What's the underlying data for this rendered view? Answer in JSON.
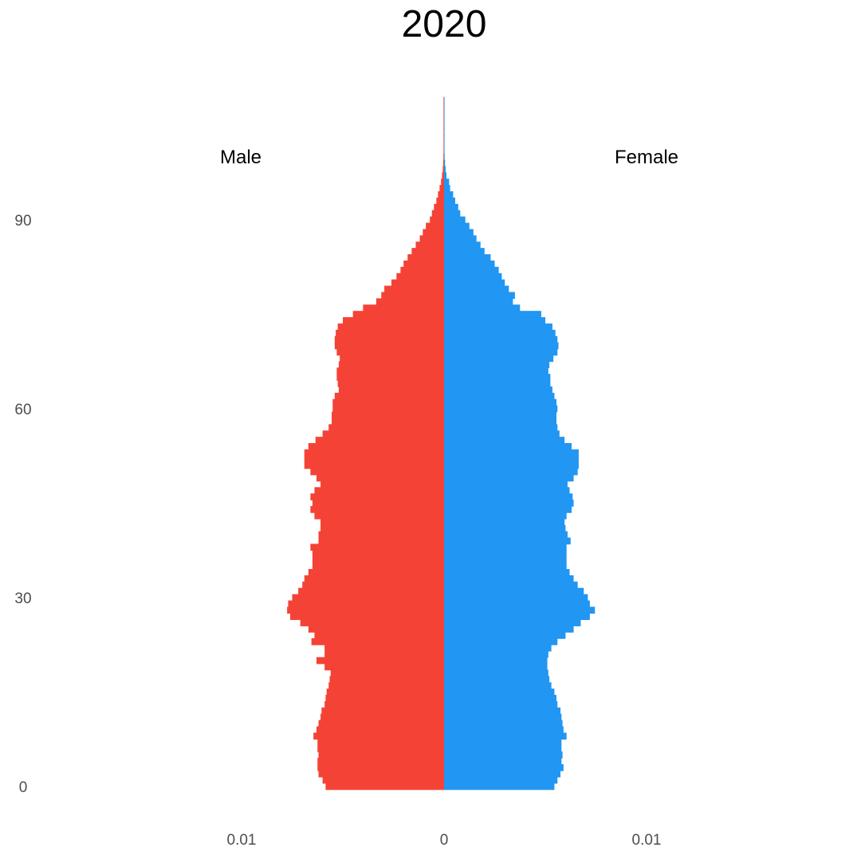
{
  "chart_data": {
    "type": "bar",
    "orientation": "horizontal",
    "title": "2020",
    "xlabel": "",
    "ylabel": "",
    "side_labels": {
      "left": "Male",
      "right": "Female"
    },
    "x_ticks": [
      {
        "value": -0.01,
        "label": "0.01"
      },
      {
        "value": 0,
        "label": "0"
      },
      {
        "value": 0.01,
        "label": "0.01"
      }
    ],
    "y_ticks": [
      0,
      30,
      60,
      90
    ],
    "xlim": [
      -0.0165,
      0.0165
    ],
    "ylim": [
      -2,
      114
    ],
    "grid": false,
    "ages_start": 0,
    "series": [
      {
        "name": "Male",
        "color": "#F44336",
        "values": [
          0.00585,
          0.006,
          0.0062,
          0.00625,
          0.00625,
          0.0062,
          0.00625,
          0.00625,
          0.00645,
          0.0063,
          0.0062,
          0.0061,
          0.00605,
          0.0059,
          0.00585,
          0.0058,
          0.0057,
          0.00565,
          0.0056,
          0.0059,
          0.0063,
          0.0059,
          0.0059,
          0.00655,
          0.0064,
          0.0067,
          0.0071,
          0.0076,
          0.00775,
          0.0077,
          0.0075,
          0.0072,
          0.007,
          0.0069,
          0.0067,
          0.0065,
          0.0065,
          0.0065,
          0.0066,
          0.0062,
          0.0062,
          0.0061,
          0.0061,
          0.0064,
          0.0066,
          0.0065,
          0.0066,
          0.0064,
          0.0061,
          0.0063,
          0.0066,
          0.0069,
          0.0069,
          0.0069,
          0.0067,
          0.00635,
          0.006,
          0.0057,
          0.00555,
          0.00555,
          0.0055,
          0.0055,
          0.0054,
          0.0052,
          0.00525,
          0.0053,
          0.0053,
          0.0052,
          0.00515,
          0.0053,
          0.0054,
          0.0054,
          0.00535,
          0.00525,
          0.005,
          0.0045,
          0.004,
          0.00335,
          0.0031,
          0.00295,
          0.0026,
          0.00235,
          0.00215,
          0.002,
          0.0018,
          0.0016,
          0.0014,
          0.0012,
          0.00105,
          0.0009,
          0.0007,
          0.0006,
          0.0005,
          0.00038,
          0.0003,
          0.00022,
          0.00015,
          0.0001,
          6e-05,
          4e-05,
          3e-05,
          2e-05,
          1e-05,
          8e-06,
          6e-06,
          4e-06,
          2e-06,
          1e-06,
          1e-06,
          5e-07
        ]
      },
      {
        "name": "Female",
        "color": "#2196F3",
        "values": [
          0.00545,
          0.0056,
          0.00575,
          0.0059,
          0.0058,
          0.00585,
          0.0058,
          0.0058,
          0.00605,
          0.0059,
          0.00585,
          0.0058,
          0.00575,
          0.0056,
          0.00555,
          0.00545,
          0.0053,
          0.0052,
          0.00515,
          0.0051,
          0.0051,
          0.00515,
          0.0053,
          0.0056,
          0.006,
          0.0064,
          0.00675,
          0.0072,
          0.00745,
          0.0072,
          0.0071,
          0.0069,
          0.0066,
          0.0064,
          0.0062,
          0.00605,
          0.00605,
          0.00605,
          0.00605,
          0.00625,
          0.0061,
          0.006,
          0.00595,
          0.00605,
          0.0063,
          0.0064,
          0.00635,
          0.0062,
          0.0061,
          0.0064,
          0.0066,
          0.00665,
          0.00665,
          0.00665,
          0.0063,
          0.00595,
          0.0057,
          0.0056,
          0.00555,
          0.00555,
          0.0056,
          0.00555,
          0.00545,
          0.00535,
          0.00525,
          0.00525,
          0.00515,
          0.0052,
          0.0054,
          0.0056,
          0.00565,
          0.0056,
          0.0055,
          0.00535,
          0.005,
          0.0048,
          0.00375,
          0.0034,
          0.0035,
          0.0032,
          0.003,
          0.00285,
          0.0027,
          0.0025,
          0.0023,
          0.002,
          0.0018,
          0.0016,
          0.00145,
          0.00125,
          0.00105,
          0.0008,
          0.0007,
          0.00055,
          0.00045,
          0.0003,
          0.00025,
          0.00012,
          8e-05,
          5e-05,
          3e-05,
          2e-05,
          1.5e-05,
          1e-05,
          8e-06,
          6e-06,
          4e-06,
          2e-06,
          1e-06,
          5e-07
        ]
      }
    ]
  }
}
